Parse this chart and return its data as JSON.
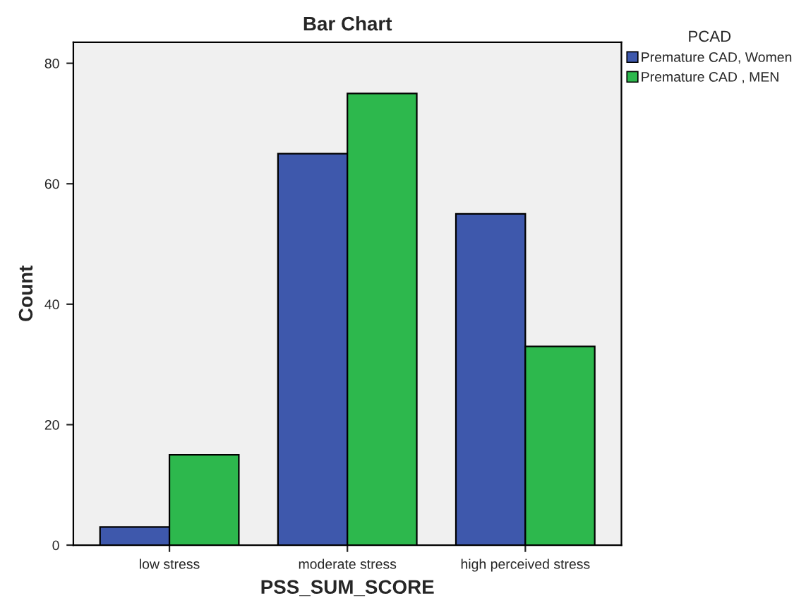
{
  "chart_data": {
    "type": "bar",
    "title": "Bar Chart",
    "xlabel": "PSS_SUM_SCORE",
    "ylabel": "Count",
    "legend_title": "PCAD",
    "categories": [
      "low stress",
      "moderate stress",
      "high perceived stress"
    ],
    "series": [
      {
        "name": "Premature CAD, Women",
        "color": "#3e58ac",
        "values": [
          3,
          65,
          55
        ]
      },
      {
        "name": "Premature CAD , MEN",
        "color": "#2db84d",
        "values": [
          15,
          75,
          33
        ]
      }
    ],
    "ylim": [
      0,
      83.5
    ],
    "yticks": [
      0,
      20,
      40,
      60,
      80
    ],
    "grid": false,
    "legend": "top right"
  }
}
